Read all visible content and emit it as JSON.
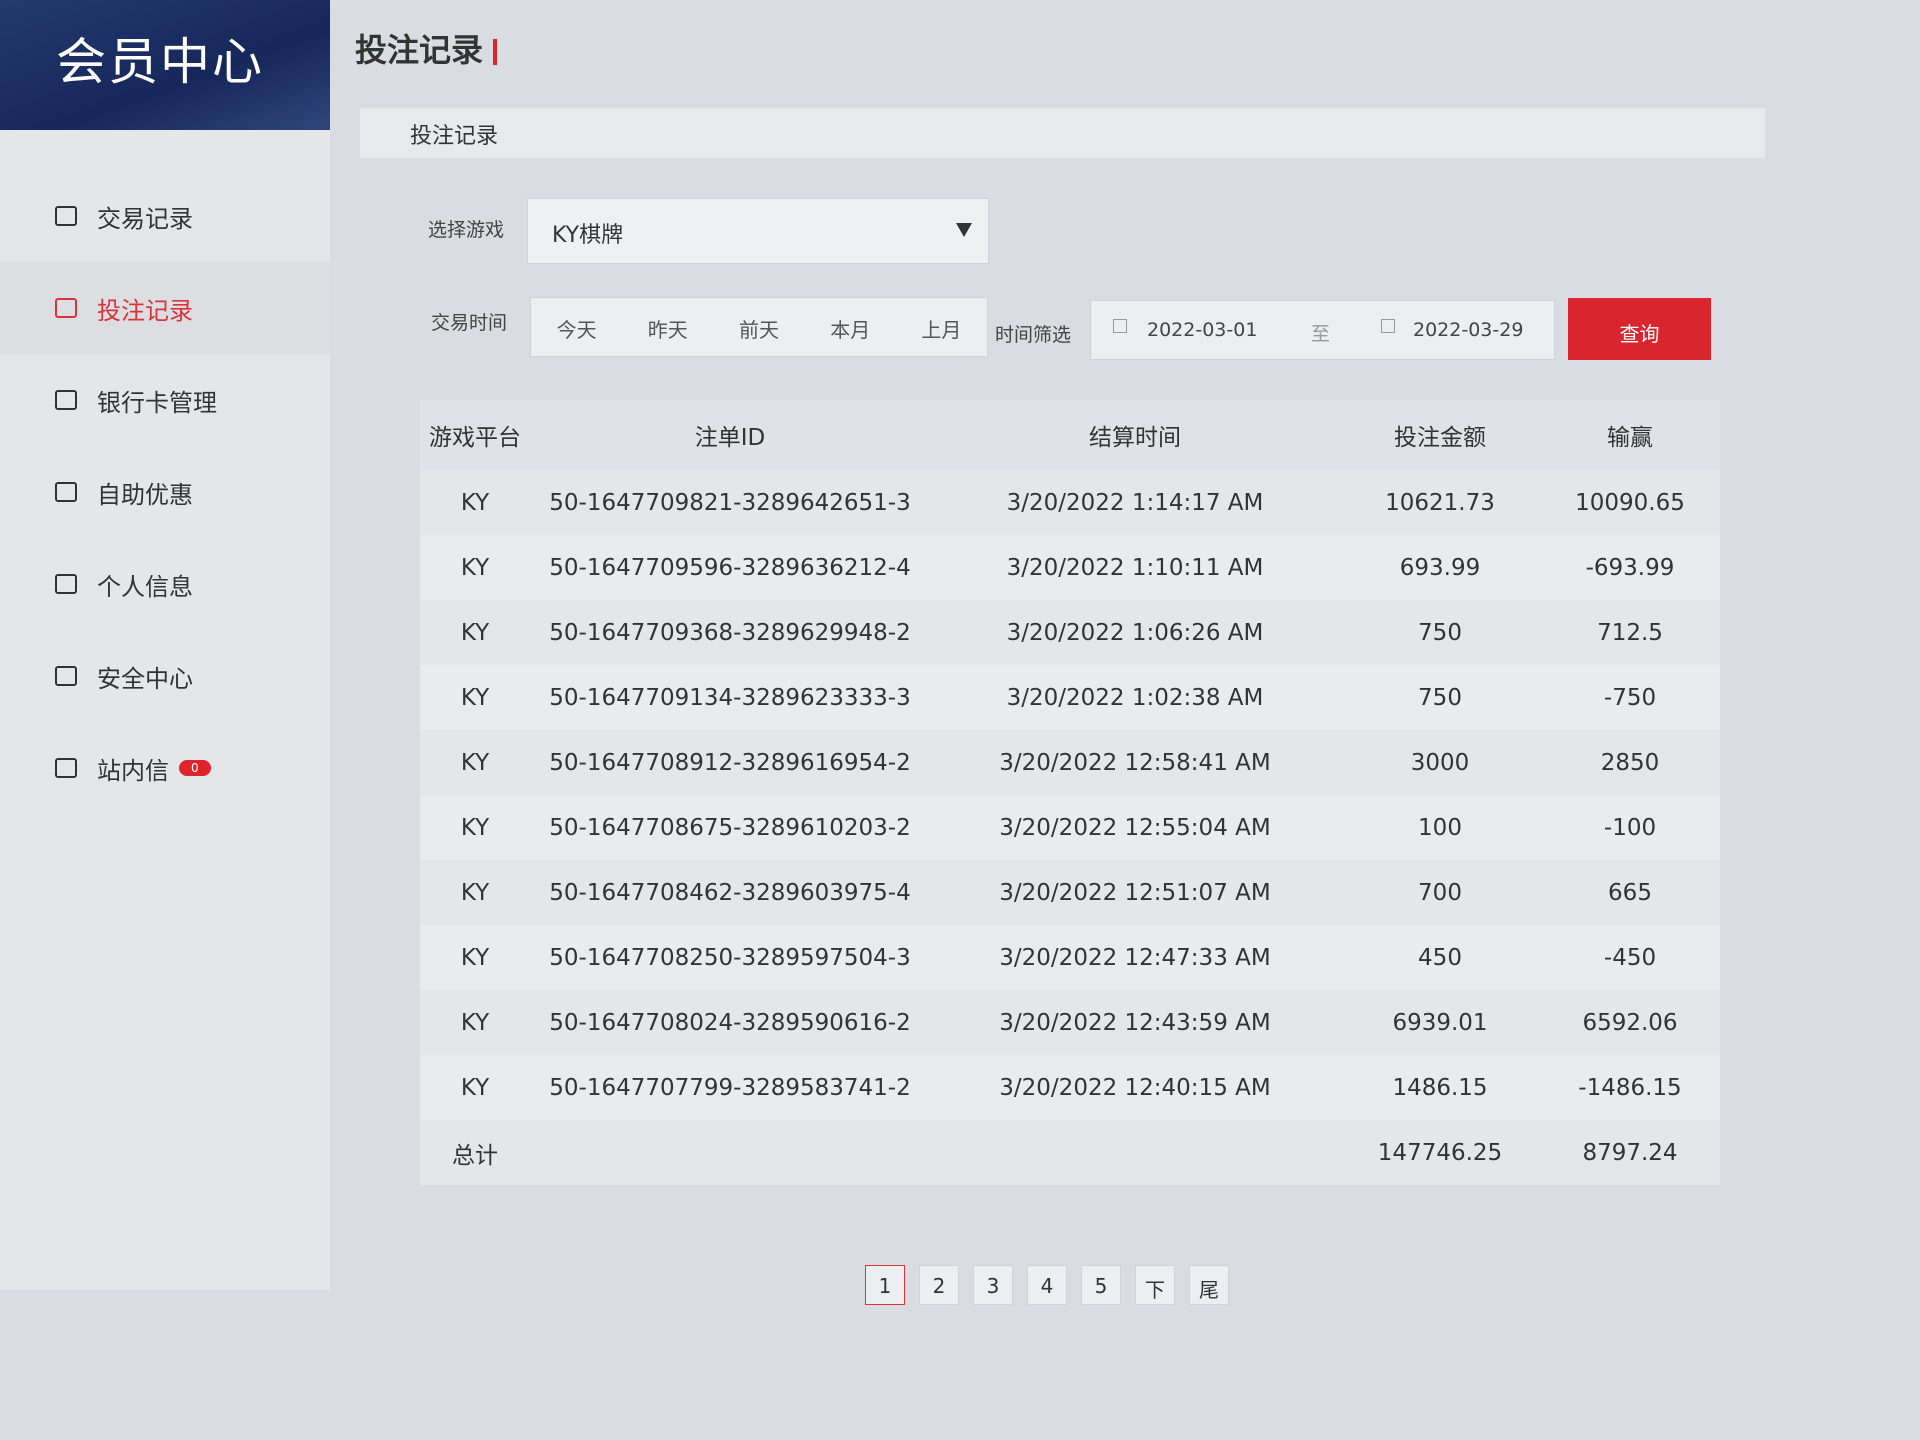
{
  "sidebar": {
    "title": "会员中心",
    "items": [
      {
        "label": "交易记录",
        "icon": "receipt-icon"
      },
      {
        "label": "投注记录",
        "icon": "list-icon",
        "active": true
      },
      {
        "label": "银行卡管理",
        "icon": "card-icon"
      },
      {
        "label": "自助优惠",
        "icon": "gift-icon"
      },
      {
        "label": "个人信息",
        "icon": "id-card-icon"
      },
      {
        "label": "安全中心",
        "icon": "shield-icon"
      },
      {
        "label": "站内信",
        "icon": "mail-icon",
        "badge": "0"
      }
    ]
  },
  "page": {
    "title": "投注记录",
    "subtitle": "投注记录"
  },
  "filters": {
    "game_label": "选择游戏",
    "game_value": "KY棋牌",
    "time_label": "交易时间",
    "quick": [
      "今天",
      "昨天",
      "前天",
      "本月",
      "上月"
    ],
    "range_label": "时间筛选",
    "start": "2022-03-01",
    "to": "至",
    "end": "2022-03-29",
    "query": "查询"
  },
  "table": {
    "headers": [
      "游戏平台",
      "注单ID",
      "结算时间",
      "投注金额",
      "输赢"
    ],
    "rows": [
      [
        "KY",
        "50-1647709821-3289642651-3",
        "3/20/2022 1:14:17 AM",
        "10621.73",
        "10090.65"
      ],
      [
        "KY",
        "50-1647709596-3289636212-4",
        "3/20/2022 1:10:11 AM",
        "693.99",
        "-693.99"
      ],
      [
        "KY",
        "50-1647709368-3289629948-2",
        "3/20/2022 1:06:26 AM",
        "750",
        "712.5"
      ],
      [
        "KY",
        "50-1647709134-3289623333-3",
        "3/20/2022 1:02:38 AM",
        "750",
        "-750"
      ],
      [
        "KY",
        "50-1647708912-3289616954-2",
        "3/20/2022 12:58:41 AM",
        "3000",
        "2850"
      ],
      [
        "KY",
        "50-1647708675-3289610203-2",
        "3/20/2022 12:55:04 AM",
        "100",
        "-100"
      ],
      [
        "KY",
        "50-1647708462-3289603975-4",
        "3/20/2022 12:51:07 AM",
        "700",
        "665"
      ],
      [
        "KY",
        "50-1647708250-3289597504-3",
        "3/20/2022 12:47:33 AM",
        "450",
        "-450"
      ],
      [
        "KY",
        "50-1647708024-3289590616-2",
        "3/20/2022 12:43:59 AM",
        "6939.01",
        "6592.06"
      ],
      [
        "KY",
        "50-1647707799-3289583741-2",
        "3/20/2022 12:40:15 AM",
        "1486.15",
        "-1486.15"
      ]
    ],
    "total": {
      "label": "总计",
      "amount": "147746.25",
      "winloss": "8797.24"
    }
  },
  "pagination": {
    "pages": [
      "1",
      "2",
      "3",
      "4",
      "5"
    ],
    "next": "下",
    "last": "尾",
    "current": "1"
  },
  "colors": {
    "accent": "#d9262e",
    "header": "#1c2f63"
  }
}
